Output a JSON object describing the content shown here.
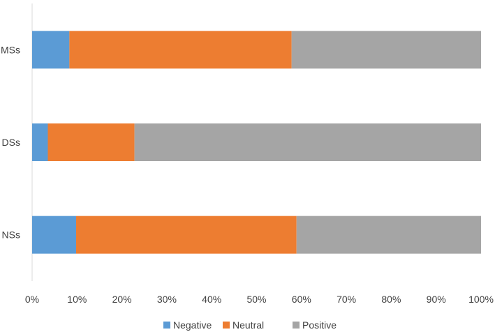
{
  "chart_data": {
    "type": "bar",
    "orientation": "horizontal",
    "stacked": "percent",
    "categories": [
      "MSs",
      "DSs",
      "NSs"
    ],
    "series": [
      {
        "name": "Negative",
        "values": [
          8.3,
          3.5,
          9.8
        ],
        "color": "#5b9bd5"
      },
      {
        "name": "Neutral",
        "values": [
          49.5,
          19.3,
          49.1
        ],
        "color": "#ed7d31"
      },
      {
        "name": "Positive",
        "values": [
          42.2,
          77.2,
          41.1
        ],
        "color": "#a5a5a5"
      }
    ],
    "xticks": [
      "0%",
      "10%",
      "20%",
      "30%",
      "40%",
      "50%",
      "60%",
      "70%",
      "80%",
      "90%",
      "100%"
    ],
    "xlim": [
      0,
      100
    ],
    "grid": false,
    "legend": "bottom"
  }
}
